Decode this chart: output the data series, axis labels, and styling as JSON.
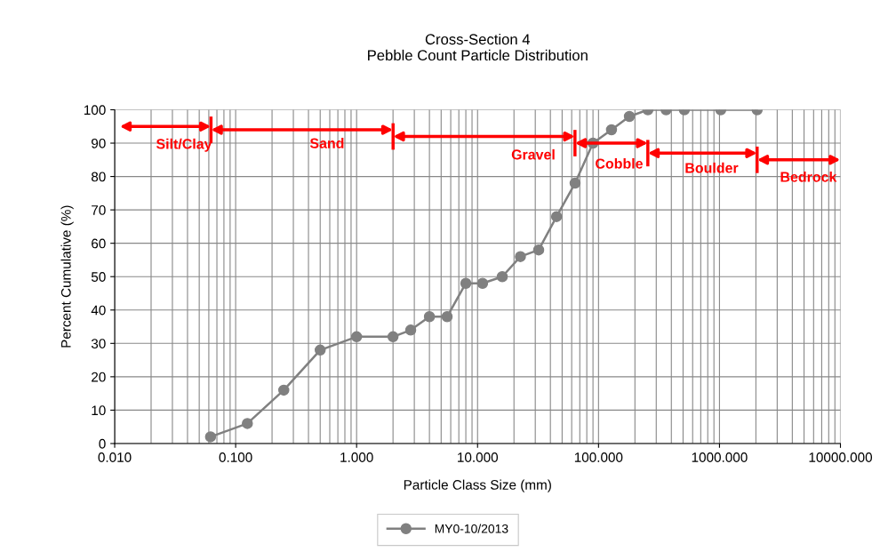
{
  "chart_data": {
    "type": "line",
    "title": "Cross-Section 4\nPebble Count Particle Distribution",
    "xlabel": "Particle Class Size (mm)",
    "ylabel": "Percent Cumulative (%)",
    "log": "x",
    "xlim": [
      0.01,
      10000
    ],
    "ylim": [
      0,
      100
    ],
    "xticks": [
      {
        "value": 0.01,
        "label": "0.010"
      },
      {
        "value": 0.1,
        "label": "0.100"
      },
      {
        "value": 1,
        "label": "1.000"
      },
      {
        "value": 10,
        "label": "10.000"
      },
      {
        "value": 100,
        "label": "100.000"
      },
      {
        "value": 1000,
        "label": "1000.000"
      },
      {
        "value": 10000,
        "label": "10000.000"
      }
    ],
    "yticks": [
      0,
      10,
      20,
      30,
      40,
      50,
      60,
      70,
      80,
      90,
      100
    ],
    "grid": true,
    "legend": "bottom",
    "marker": "circle",
    "line_style": "solid",
    "series": [
      {
        "name": "MY0-10/2013",
        "color": "#808080",
        "x": [
          0.062,
          0.125,
          0.25,
          0.5,
          1,
          2,
          2.8,
          4,
          5.6,
          8,
          11,
          16,
          22.6,
          32,
          45,
          64,
          90,
          128,
          180,
          256,
          362,
          512,
          1024,
          2048
        ],
        "values": [
          2,
          6,
          16,
          28,
          32,
          32,
          34,
          38,
          38,
          48,
          48,
          50,
          56,
          58,
          68,
          78,
          90,
          94,
          98,
          100,
          100,
          100,
          100,
          100
        ]
      }
    ],
    "annotations": [
      "Silt/Clay",
      "Sand",
      "Gravel",
      "Cobble",
      "Boulder",
      "Bedrock"
    ]
  }
}
